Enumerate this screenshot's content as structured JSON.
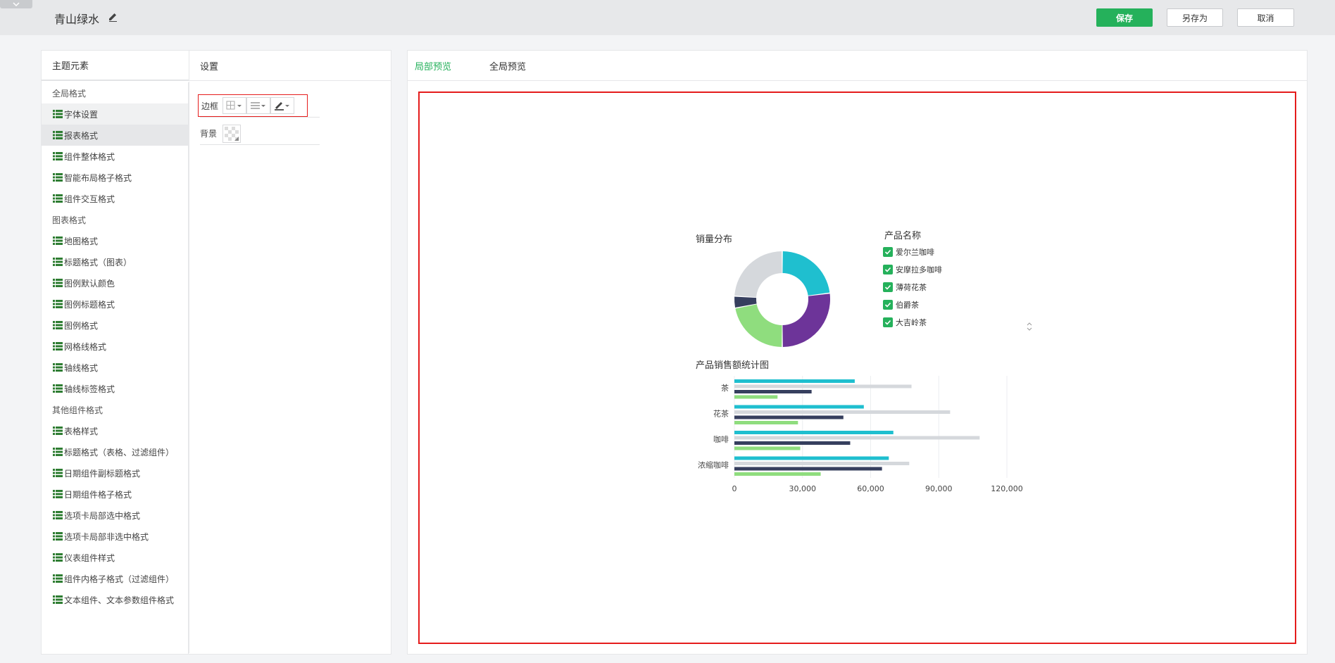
{
  "header": {
    "title": "青山绿水",
    "save_label": "保存",
    "saveas_label": "另存为",
    "cancel_label": "取消"
  },
  "left": {
    "elements_title": "主题元素",
    "settings_title": "设置",
    "items": [
      {
        "label": "全局格式",
        "type": "group"
      },
      {
        "label": "字体设置",
        "type": "leaf"
      },
      {
        "label": "报表格式",
        "type": "leaf"
      },
      {
        "label": "组件整体格式",
        "type": "leaf"
      },
      {
        "label": "智能布局格子格式",
        "type": "leaf"
      },
      {
        "label": "组件交互格式",
        "type": "leaf"
      },
      {
        "label": "图表格式",
        "type": "group"
      },
      {
        "label": "地图格式",
        "type": "leaf"
      },
      {
        "label": "标题格式（图表）",
        "type": "leaf"
      },
      {
        "label": "图例默认颜色",
        "type": "leaf"
      },
      {
        "label": "图例标题格式",
        "type": "leaf"
      },
      {
        "label": "图例格式",
        "type": "leaf"
      },
      {
        "label": "网格线格式",
        "type": "leaf"
      },
      {
        "label": "轴线格式",
        "type": "leaf"
      },
      {
        "label": "轴线标签格式",
        "type": "leaf"
      },
      {
        "label": "其他组件格式",
        "type": "group"
      },
      {
        "label": "表格样式",
        "type": "leaf"
      },
      {
        "label": "标题格式（表格、过滤组件）",
        "type": "leaf"
      },
      {
        "label": "日期组件副标题格式",
        "type": "leaf"
      },
      {
        "label": "日期组件格子格式",
        "type": "leaf"
      },
      {
        "label": "选项卡局部选中格式",
        "type": "leaf"
      },
      {
        "label": "选项卡局部非选中格式",
        "type": "leaf"
      },
      {
        "label": "仪表组件样式",
        "type": "leaf"
      },
      {
        "label": "组件内格子格式（过滤组件）",
        "type": "leaf"
      },
      {
        "label": "文本组件、文本参数组件格式",
        "type": "leaf"
      }
    ],
    "selected_item": "报表格式",
    "settings": {
      "border_label": "边框",
      "background_label": "背景"
    }
  },
  "right": {
    "tab_local": "局部预览",
    "tab_global": "全局预览"
  },
  "colors": {
    "accent_green": "#25b15b",
    "highlight_red": "#e51c1c",
    "series_cyan": "#1fbfcf",
    "series_gray": "#d5d8dc",
    "series_navy": "#363f5e",
    "series_green": "#8fdd7e",
    "series_purple": "#6d3499"
  },
  "chart_data": [
    {
      "type": "pie",
      "title": "销量分布",
      "legend_title": "产品名称",
      "categories": [
        "爱尔兰咖啡",
        "安摩拉多咖啡",
        "薄荷花茶",
        "伯爵茶",
        "大吉岭茶"
      ],
      "values": [
        23,
        27,
        22,
        4,
        24
      ],
      "slice_colors": [
        "#1fbfcf",
        "#6d3499",
        "#8fdd7e",
        "#363f5e",
        "#d5d8dc"
      ]
    },
    {
      "type": "bar",
      "orientation": "horizontal",
      "title": "产品销售额统计图",
      "categories": [
        "茶",
        "花茶",
        "咖啡",
        "浓缩咖啡"
      ],
      "series": [
        {
          "color": "#1fbfcf",
          "values": [
            53000,
            57000,
            70000,
            68000
          ]
        },
        {
          "color": "#d5d8dc",
          "values": [
            78000,
            95000,
            108000,
            77000
          ]
        },
        {
          "color": "#363f5e",
          "values": [
            34000,
            48000,
            51000,
            65000
          ]
        },
        {
          "color": "#8fdd7e",
          "values": [
            19000,
            28000,
            29000,
            38000
          ]
        }
      ],
      "xticks": [
        "0",
        "30,000",
        "60,000",
        "90,000",
        "120,000"
      ],
      "xlim": [
        0,
        120000
      ]
    }
  ]
}
